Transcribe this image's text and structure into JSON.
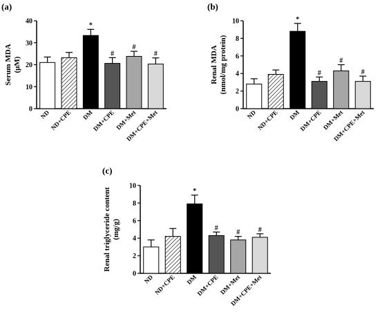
{
  "colors": {
    "ND": "#ffffff",
    "ND+CPE": "hatch",
    "DM": "#000000",
    "DM+CPE": "#555555",
    "DM+Met": "#a6a6a6",
    "DM+CPE+Met": "#d9d9d9",
    "axis": "#000000"
  },
  "chart_data": [
    {
      "panel": "(a)",
      "type": "bar",
      "ylabel": [
        "Serum MDA",
        "(μM)"
      ],
      "ylim": [
        0,
        40
      ],
      "yticks": [
        0,
        10,
        20,
        30,
        40
      ],
      "categories": [
        "ND",
        "ND+CPE",
        "DM",
        "DM+CPE",
        "DM+Met",
        "DM+CPE+Met"
      ],
      "values": [
        21.0,
        23.2,
        33.3,
        20.6,
        23.8,
        20.3
      ],
      "errors": [
        2.5,
        2.4,
        2.8,
        2.6,
        2.3,
        2.8
      ],
      "annotations": [
        "",
        "",
        "*",
        "#",
        "#",
        "#"
      ]
    },
    {
      "panel": "(b)",
      "type": "bar",
      "ylabel": [
        "Renal MDA",
        "(nmol/mg protein)"
      ],
      "ylim": [
        0,
        10
      ],
      "yticks": [
        0,
        2,
        4,
        6,
        8,
        10
      ],
      "categories": [
        "ND",
        "ND+CPE",
        "DM",
        "DM+CPE",
        "DM+Met",
        "DM+CPE+Met"
      ],
      "values": [
        2.8,
        3.9,
        8.8,
        3.1,
        4.3,
        3.1
      ],
      "errors": [
        0.6,
        0.5,
        0.9,
        0.5,
        0.7,
        0.6
      ],
      "annotations": [
        "",
        "",
        "*",
        "#",
        "#",
        "#"
      ]
    },
    {
      "panel": "(c)",
      "type": "bar",
      "ylabel": [
        "Renal triglyceride content",
        "(mg/g)"
      ],
      "ylim": [
        0,
        10
      ],
      "yticks": [
        0,
        2,
        4,
        6,
        8,
        10
      ],
      "categories": [
        "ND",
        "ND+CPE",
        "DM",
        "DM+CPE",
        "DM+Met",
        "DM+CPE+Met"
      ],
      "values": [
        3.0,
        4.2,
        7.9,
        4.3,
        3.8,
        4.1
      ],
      "errors": [
        0.8,
        0.9,
        1.0,
        0.4,
        0.4,
        0.4
      ],
      "annotations": [
        "",
        "",
        "*",
        "#",
        "#",
        "#"
      ]
    }
  ]
}
